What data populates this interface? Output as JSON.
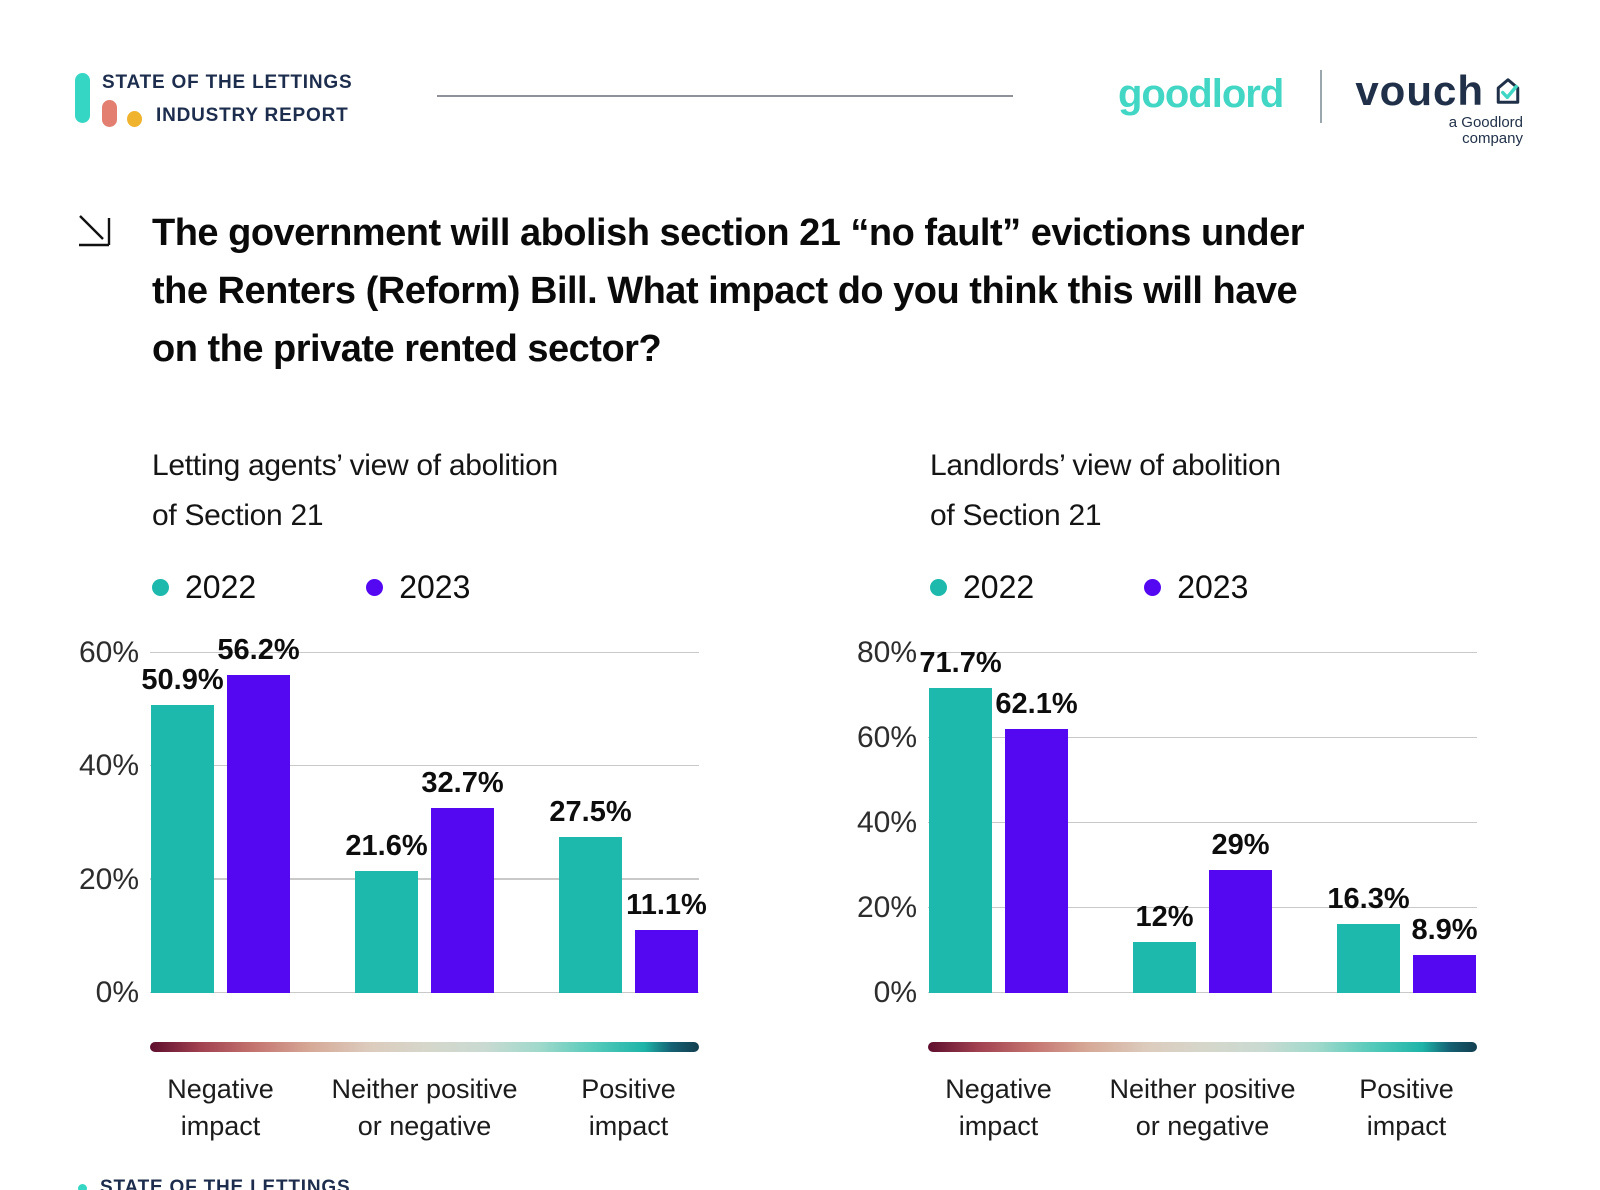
{
  "header": {
    "report_logo": {
      "line1": "STATE OF THE LETTINGS",
      "line2": "INDUSTRY REPORT"
    },
    "goodlord_wordmark": "goodlord",
    "vouch_wordmark": "vouch",
    "vouch_tagline_line1": "a Goodlord",
    "vouch_tagline_line2": "company"
  },
  "question": {
    "lines": [
      "The government will abolish section 21 “no fault” evictions under",
      "the Renters (Reform) Bill. What impact do you think this will have",
      "on the private rented sector?"
    ]
  },
  "chart_data": [
    {
      "type": "bar",
      "title": "Letting agents’ view of abolition of Section 21",
      "title_lines": [
        "Letting agents’ view of abolition",
        "of Section 21"
      ],
      "categories": [
        "Negative impact",
        "Neither positive or negative",
        "Positive impact"
      ],
      "category_lines": [
        [
          "Negative",
          "impact"
        ],
        [
          "Neither positive",
          "or negative"
        ],
        [
          "Positive",
          "impact"
        ]
      ],
      "series": [
        {
          "name": "2022",
          "color": "#1CB9AC",
          "values": [
            50.9,
            21.6,
            27.5
          ],
          "labels": [
            "50.9%",
            "21.6%",
            "27.5%"
          ]
        },
        {
          "name": "2023",
          "color": "#5408F2",
          "values": [
            56.2,
            32.7,
            11.1
          ],
          "labels": [
            "56.2%",
            "32.7%",
            "11.1%"
          ]
        }
      ],
      "ylim": [
        0,
        60
      ],
      "yticks": [
        {
          "value": 60,
          "label": "60%"
        },
        {
          "value": 40,
          "label": "40%"
        },
        {
          "value": 20,
          "label": "20%"
        },
        {
          "value": 0,
          "label": "0%"
        }
      ],
      "grid": true,
      "legend_position": "top-left"
    },
    {
      "type": "bar",
      "title": "Landlords’ view of abolition of Section 21",
      "title_lines": [
        "Landlords’ view of abolition",
        "of Section 21"
      ],
      "categories": [
        "Negative impact",
        "Neither positive or negative",
        "Positive impact"
      ],
      "category_lines": [
        [
          "Negative",
          "impact"
        ],
        [
          "Neither positive",
          "or negative"
        ],
        [
          "Positive",
          "impact"
        ]
      ],
      "series": [
        {
          "name": "2022",
          "color": "#1CB9AC",
          "values": [
            71.7,
            12,
            16.3
          ],
          "labels": [
            "71.7%",
            "12%",
            "16.3%"
          ]
        },
        {
          "name": "2023",
          "color": "#5408F2",
          "values": [
            62.1,
            29,
            8.9
          ],
          "labels": [
            "62.1%",
            "29%",
            "8.9%"
          ]
        }
      ],
      "ylim": [
        0,
        80
      ],
      "yticks": [
        {
          "value": 80,
          "label": "80%"
        },
        {
          "value": 60,
          "label": "60%"
        },
        {
          "value": 40,
          "label": "40%"
        },
        {
          "value": 20,
          "label": "20%"
        },
        {
          "value": 0,
          "label": "0%"
        }
      ],
      "grid": true,
      "legend_position": "top-left"
    }
  ],
  "footer": {
    "clipped_text": "STATE OF THE LETTINGS"
  },
  "colors": {
    "teal_2022": "#1CB9AC",
    "purple_2023": "#5408F2",
    "navy_text": "#1C2D4D",
    "goodlord_teal": "#41D7C4",
    "logo_teal": "#35D6C3",
    "logo_salmon": "#E37F70",
    "logo_yellow": "#F0B32D"
  }
}
